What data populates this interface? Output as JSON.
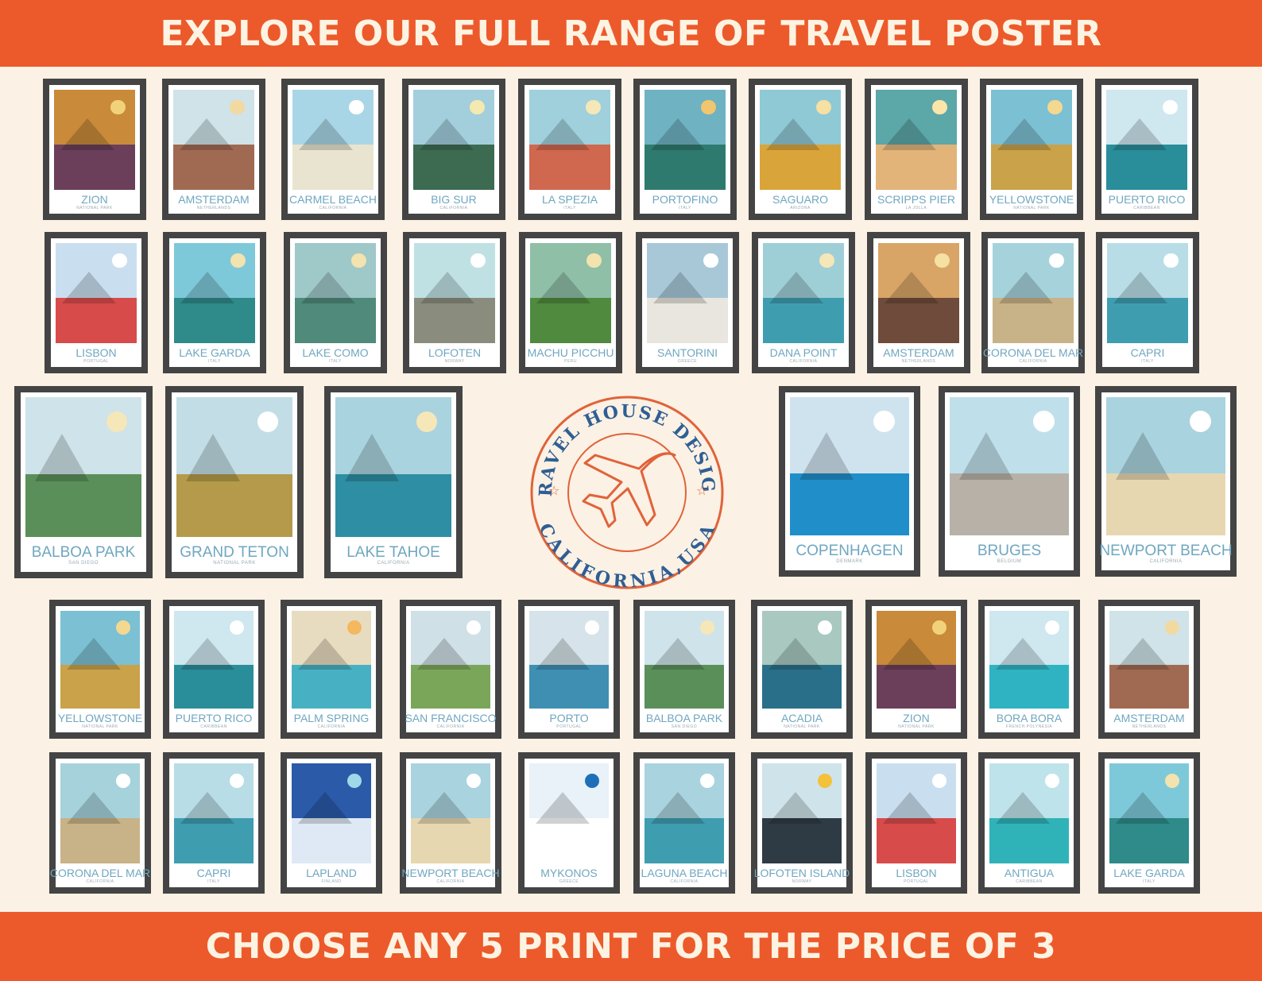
{
  "header": {
    "title": "EXPLORE OUR FULL RANGE OF TRAVEL POSTER"
  },
  "footer": {
    "title": "CHOOSE ANY 5 PRINT FOR THE PRICE OF 3"
  },
  "logo": {
    "brand": "TRAVEL HOUSE DESIGN",
    "location": "CALIFORNIA,USA",
    "color": "#e0633a"
  },
  "colors": {
    "banner": "#ec5a2b",
    "banner_text": "#fdf3e2",
    "background": "#fbf1e4",
    "frame": "#444444",
    "caption": "#6fa7c0"
  },
  "rows": {
    "row1": [
      {
        "name": "ZION",
        "sub": "NATIONAL PARK",
        "icon": "canyon-artwork",
        "sky": "#c98a3a",
        "land": "#6b3f5a",
        "sun": "#f1d27a"
      },
      {
        "name": "AMSTERDAM",
        "sub": "NETHERLANDS",
        "icon": "city-artwork",
        "sky": "#cfe3e8",
        "land": "#a06a52",
        "sun": "#f2d9a0"
      },
      {
        "name": "CARMEL BEACH",
        "sub": "CALIFORNIA",
        "icon": "beach-artwork",
        "sky": "#a9d6e6",
        "land": "#e9e4cf",
        "sun": "#ffffff"
      },
      {
        "name": "BIG SUR",
        "sub": "CALIFORNIA",
        "icon": "coast-artwork",
        "sky": "#a3cfdc",
        "land": "#3d6b52",
        "sun": "#f4e9b0"
      },
      {
        "name": "LA SPEZIA",
        "sub": "ITALY",
        "icon": "village-artwork",
        "sky": "#9fd0dc",
        "land": "#d0674f",
        "sun": "#f6e7b8"
      },
      {
        "name": "PORTOFINO",
        "sub": "ITALY",
        "icon": "harbor-artwork",
        "sky": "#6fb2c2",
        "land": "#2f7a6e",
        "sun": "#f2c66e"
      },
      {
        "name": "SAGUARO",
        "sub": "ARIZONA",
        "icon": "cactus-artwork",
        "sky": "#8fc9d6",
        "land": "#d9a53a",
        "sun": "#f6e0a2"
      },
      {
        "name": "SCRIPPS PIER",
        "sub": "LA JOLLA",
        "icon": "pier-artwork",
        "sky": "#5ca7a8",
        "land": "#e2b47a",
        "sun": "#fbe5a9"
      },
      {
        "name": "YELLOWSTONE",
        "sub": "NATIONAL PARK",
        "icon": "mountain-artwork",
        "sky": "#7cc0d4",
        "land": "#c9a24a",
        "sun": "#f4d890"
      },
      {
        "name": "PUERTO RICO",
        "sub": "CARIBBEAN",
        "icon": "bay-artwork",
        "sky": "#cfe7ef",
        "land": "#2a8d9a",
        "sun": "#ffffff"
      }
    ],
    "row2": [
      {
        "name": "LISBON",
        "sub": "PORTUGAL",
        "icon": "tram-artwork",
        "sky": "#c9dff0",
        "land": "#d84b4b",
        "sun": "#ffffff"
      },
      {
        "name": "LAKE GARDA",
        "sub": "ITALY",
        "icon": "castle-artwork",
        "sky": "#7ec9d9",
        "land": "#2f8a8a",
        "sun": "#f3e3ae"
      },
      {
        "name": "LAKE COMO",
        "sub": "ITALY",
        "icon": "lake-artwork",
        "sky": "#9fc8c9",
        "land": "#4f8a7a",
        "sun": "#f3e3ae"
      },
      {
        "name": "LOFOTEN",
        "sub": "NORWAY",
        "icon": "cabin-artwork",
        "sky": "#bfe1e4",
        "land": "#8a8d7e",
        "sun": "#ffffff"
      },
      {
        "name": "MACHU PICCHU",
        "sub": "PERU",
        "icon": "ruins-artwork",
        "sky": "#8fbfa7",
        "land": "#4f8a3e",
        "sun": "#f3e3ae"
      },
      {
        "name": "SANTORINI",
        "sub": "GREECE",
        "icon": "dome-artwork",
        "sky": "#a8c8d8",
        "land": "#e9e6df",
        "sun": "#ffffff"
      },
      {
        "name": "DANA POINT",
        "sub": "CALIFORNIA",
        "icon": "marina-artwork",
        "sky": "#9fcfd6",
        "land": "#3f9db0",
        "sun": "#f6e7b8"
      },
      {
        "name": "AMSTERDAM",
        "sub": "NETHERLANDS",
        "icon": "canal-artwork",
        "sky": "#d8a566",
        "land": "#6e4b3a",
        "sun": "#f6e0a2"
      },
      {
        "name": "CORONA DEL MAR",
        "sub": "CALIFORNIA",
        "icon": "shore-artwork",
        "sky": "#a6d2dc",
        "land": "#c8b287",
        "sun": "#ffffff"
      },
      {
        "name": "CAPRI",
        "sub": "ITALY",
        "icon": "cliff-artwork",
        "sky": "#b8dde6",
        "land": "#3f9db0",
        "sun": "#ffffff"
      }
    ],
    "row3_left": [
      {
        "name": "BALBOA PARK",
        "sub": "SAN DIEGO",
        "icon": "tower-artwork",
        "sky": "#cfe3ea",
        "land": "#5a8f5a",
        "sun": "#f6e7b8"
      },
      {
        "name": "GRAND TETON",
        "sub": "NATIONAL PARK",
        "icon": "peaks-artwork",
        "sky": "#c2dde6",
        "land": "#b49a4a",
        "sun": "#ffffff"
      },
      {
        "name": "LAKE TAHOE",
        "sub": "CALIFORNIA",
        "icon": "kayak-artwork",
        "sky": "#a9d3df",
        "land": "#2e8ea3",
        "sun": "#f6e7b8"
      }
    ],
    "row3_right": [
      {
        "name": "COPENHAGEN",
        "sub": "DENMARK",
        "icon": "harbor-houses-artwork",
        "sky": "#cfe3ef",
        "land": "#1f8ec9",
        "sun": "#ffffff"
      },
      {
        "name": "BRUGES",
        "sub": "BELGIUM",
        "icon": "carriage-artwork",
        "sky": "#bfe0ea",
        "land": "#b7b1a8",
        "sun": "#ffffff"
      },
      {
        "name": "NEWPORT BEACH",
        "sub": "CALIFORNIA",
        "icon": "beach-houses-artwork",
        "sky": "#a9d3df",
        "land": "#e7d7b0",
        "sun": "#ffffff"
      }
    ],
    "row4": [
      {
        "name": "YELLOWSTONE",
        "sub": "NATIONAL PARK",
        "icon": "mountain-artwork",
        "sky": "#7cc0d4",
        "land": "#c9a24a",
        "sun": "#f4d890"
      },
      {
        "name": "PUERTO RICO",
        "sub": "CARIBBEAN",
        "icon": "bay-artwork",
        "sky": "#cfe7ef",
        "land": "#2a8d9a",
        "sun": "#ffffff"
      },
      {
        "name": "PALM SPRING",
        "sub": "CALIFORNIA",
        "icon": "pool-artwork",
        "sky": "#e8dcc0",
        "land": "#47b0c2",
        "sun": "#f4b860"
      },
      {
        "name": "SAN FRANCISCO",
        "sub": "CALIFORNIA",
        "icon": "street-artwork",
        "sky": "#cfe0e6",
        "land": "#7aa65a",
        "sun": "#ffffff"
      },
      {
        "name": "PORTO",
        "sub": "PORTUGAL",
        "icon": "river-artwork",
        "sky": "#d6e3ea",
        "land": "#3f8fb3",
        "sun": "#ffffff"
      },
      {
        "name": "BALBOA PARK",
        "sub": "SAN DIEGO",
        "icon": "tower-artwork",
        "sky": "#cfe3ea",
        "land": "#5a8f5a",
        "sun": "#f6e7b8"
      },
      {
        "name": "ACADIA",
        "sub": "NATIONAL PARK",
        "icon": "lighthouse-artwork",
        "sky": "#a8c8c0",
        "land": "#2a6f8a",
        "sun": "#ffffff"
      },
      {
        "name": "ZION",
        "sub": "NATIONAL PARK",
        "icon": "canyon-artwork",
        "sky": "#c98a3a",
        "land": "#6b3f5a",
        "sun": "#f1d27a"
      },
      {
        "name": "BORA BORA",
        "sub": "FRENCH POLYNESIA",
        "icon": "island-artwork",
        "sky": "#cfe7ef",
        "land": "#2fb3c2",
        "sun": "#ffffff"
      },
      {
        "name": "AMSTERDAM",
        "sub": "NETHERLANDS",
        "icon": "city-artwork",
        "sky": "#cfe3e8",
        "land": "#a06a52",
        "sun": "#f2d9a0"
      }
    ],
    "row5": [
      {
        "name": "CORONA DEL MAR",
        "sub": "CALIFORNIA",
        "icon": "shore-artwork",
        "sky": "#a6d2dc",
        "land": "#c8b287",
        "sun": "#ffffff"
      },
      {
        "name": "CAPRI",
        "sub": "ITALY",
        "icon": "cliff-artwork",
        "sky": "#b8dde6",
        "land": "#3f9db0",
        "sun": "#ffffff"
      },
      {
        "name": "LAPLAND",
        "sub": "FINLAND",
        "icon": "igloo-artwork",
        "sky": "#2a5aa8",
        "land": "#dfe9f5",
        "sun": "#9fd8e8"
      },
      {
        "name": "NEWPORT BEACH",
        "sub": "CALIFORNIA",
        "icon": "beach-houses-artwork",
        "sky": "#a9d3df",
        "land": "#e7d7b0",
        "sun": "#ffffff"
      },
      {
        "name": "MYKONOS",
        "sub": "GREECE",
        "icon": "door-artwork",
        "sky": "#e8f2f8",
        "land": "#ffffff",
        "sun": "#1f6fb8"
      },
      {
        "name": "LAGUNA BEACH",
        "sub": "CALIFORNIA",
        "icon": "palm-beach-artwork",
        "sky": "#a9d3df",
        "land": "#3f9db0",
        "sun": "#ffffff"
      },
      {
        "name": "LOFOTEN ISLAND",
        "sub": "NORWAY",
        "icon": "peak-house-artwork",
        "sky": "#cfe3ea",
        "land": "#2f3b44",
        "sun": "#f3c23a"
      },
      {
        "name": "LISBON",
        "sub": "PORTUGAL",
        "icon": "tram-artwork",
        "sky": "#c9dff0",
        "land": "#d84b4b",
        "sun": "#ffffff"
      },
      {
        "name": "ANTIGUA",
        "sub": "CARIBBEAN",
        "icon": "lagoon-artwork",
        "sky": "#bfe3ea",
        "land": "#2fb3b8",
        "sun": "#ffffff"
      },
      {
        "name": "LAKE GARDA",
        "sub": "ITALY",
        "icon": "castle-artwork",
        "sky": "#7ec9d9",
        "land": "#2f8a8a",
        "sun": "#f3e3ae"
      }
    ]
  }
}
